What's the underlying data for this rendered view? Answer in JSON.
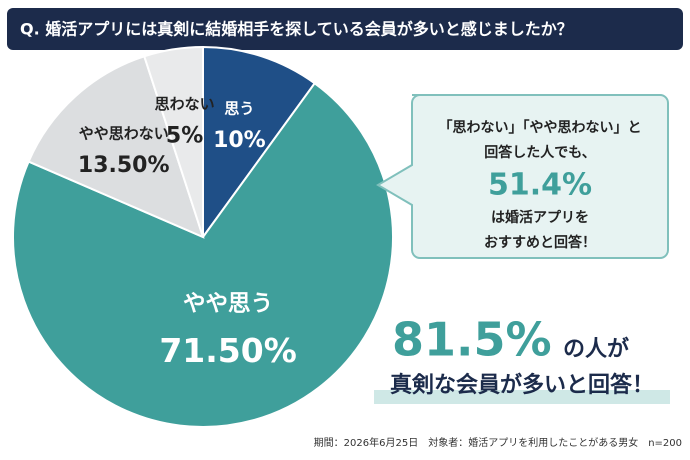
{
  "chart_data": {
    "type": "pie",
    "title": "Q. 婚活アプリには真剣に結婚相手を探している会員が多いと感じましたか？",
    "categories": [
      "思う",
      "やや思う",
      "やや思わない",
      "思わない"
    ],
    "values": [
      10,
      71.5,
      13.5,
      5
    ],
    "value_labels": [
      "10%",
      "71.50%",
      "13.50%",
      "5%"
    ],
    "colors": [
      "#1f4f87",
      "#3f9f9b",
      "#dcdee0",
      "#e9eaeb"
    ],
    "callout": [
      "「思わない」「やや思わない」と",
      "回答した人でも、",
      "51.4%",
      "は婚活アプリを",
      "おすすめと回答！"
    ],
    "headline": [
      "81.5%",
      "の人が",
      "真剣な会員が多いと回答！"
    ],
    "footnote": "期間：2026年6月25日　対象者：婚活アプリを利用したことがある男女　n=200"
  }
}
